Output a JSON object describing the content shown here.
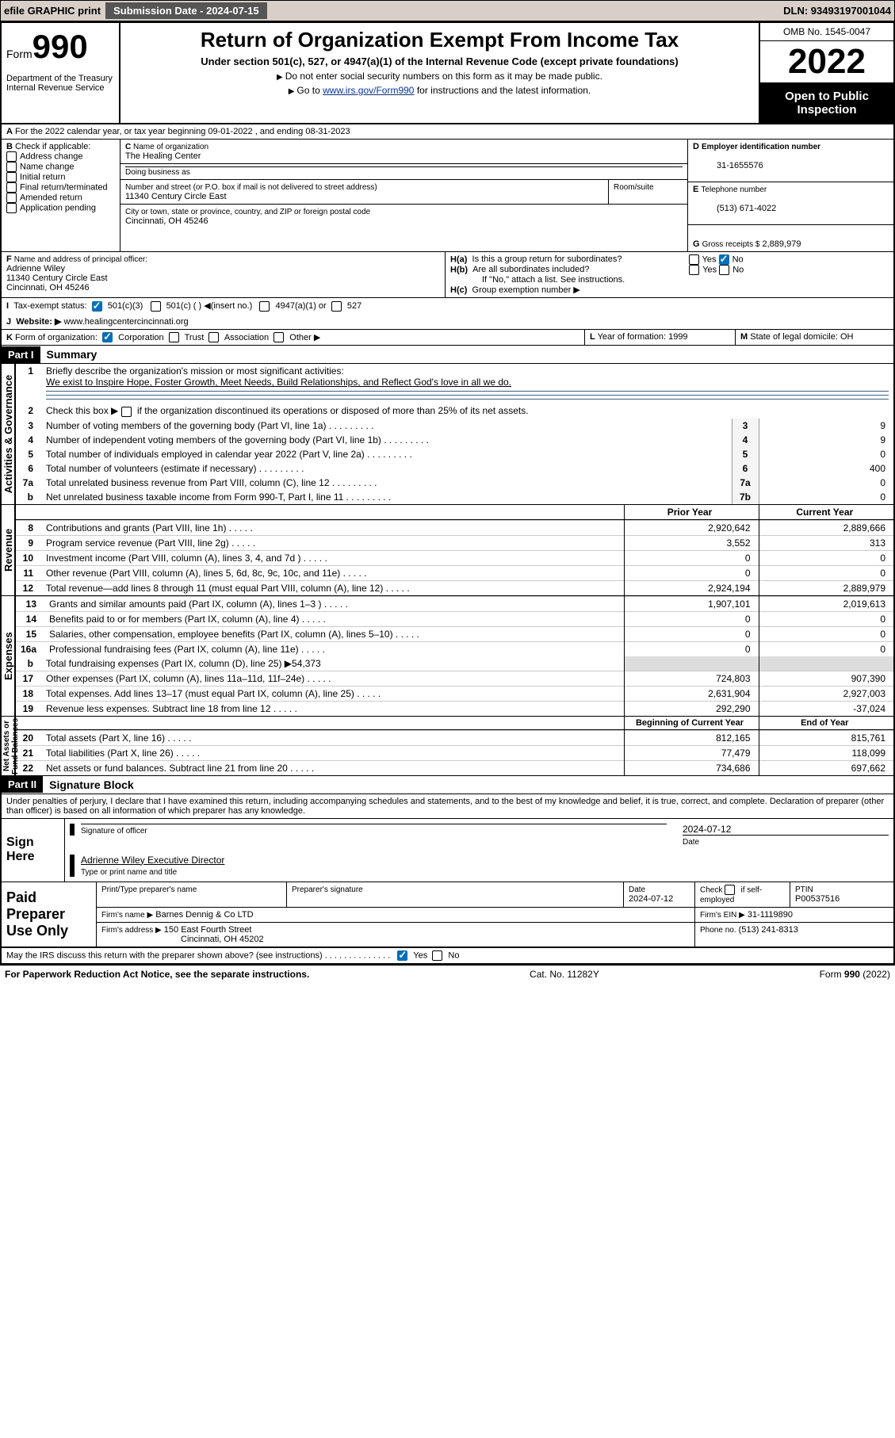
{
  "header": {
    "efile_label": "efile GRAPHIC print",
    "submission_label": "Submission Date - 2024-07-15",
    "dln": "DLN: 93493197001044"
  },
  "title_block": {
    "form": "Form",
    "form_number": "990",
    "dept": "Department of the Treasury",
    "irs": "Internal Revenue Service",
    "main_title": "Return of Organization Exempt From Income Tax",
    "subtitle": "Under section 501(c), 527, or 4947(a)(1) of the Internal Revenue Code (except private foundations)",
    "note1": "Do not enter social security numbers on this form as it may be made public.",
    "note2_a": "Go to ",
    "note2_link": "www.irs.gov/Form990",
    "note2_b": " for instructions and the latest information.",
    "omb": "OMB No. 1545-0047",
    "year": "2022",
    "open": "Open to Public Inspection"
  },
  "lineA": "For the 2022 calendar year, or tax year beginning 09-01-2022    , and ending 08-31-2023",
  "checkB": {
    "label": "Check if applicable:",
    "items": [
      "Address change",
      "Name change",
      "Initial return",
      "Final return/terminated",
      "Amended return",
      "Application pending"
    ]
  },
  "blockC": {
    "label_name": "Name of organization",
    "name": "The Healing Center",
    "dba_label": "Doing business as",
    "addr_label": "Number and street (or P.O. box if mail is not delivered to street address)",
    "room_label": "Room/suite",
    "addr": "11340 Century Circle East",
    "city_label": "City or town, state or province, country, and ZIP or foreign postal code",
    "city": "Cincinnati, OH  45246"
  },
  "blockD": {
    "label": "Employer identification number",
    "value": "31-1655576"
  },
  "blockE": {
    "label": "Telephone number",
    "value": "(513) 671-4022"
  },
  "blockG": {
    "label": "Gross receipts $",
    "value": "2,889,979"
  },
  "blockF": {
    "label": "Name and address of principal officer:",
    "name": "Adrienne Wiley",
    "addr1": "11340 Century Circle East",
    "addr2": "Cincinnati, OH  45246"
  },
  "blockH": {
    "a": "Is this a group return for subordinates?",
    "b": "Are all subordinates included?",
    "b_note": "If \"No,\" attach a list. See instructions.",
    "c": "Group exemption number ▶"
  },
  "blockI": {
    "label": "Tax-exempt status:",
    "c3": "501(c)(3)",
    "c": "501(c) (  ) ◀(insert no.)",
    "a1": "4947(a)(1) or",
    "s527": "527"
  },
  "blockJ": {
    "label": "Website: ▶",
    "value": "www.healingcentercincinnati.org"
  },
  "blockK": {
    "label": "Form of organization:",
    "corp": "Corporation",
    "trust": "Trust",
    "assoc": "Association",
    "other": "Other ▶"
  },
  "blockL": {
    "label": "Year of formation:",
    "value": "1999"
  },
  "blockM": {
    "label": "State of legal domicile:",
    "value": "OH"
  },
  "part1": {
    "header": "Part I",
    "title": "Summary",
    "vtab_gov": "Activities & Governance",
    "vtab_rev": "Revenue",
    "vtab_exp": "Expenses",
    "vtab_net": "Net Assets or Fund Balances",
    "l1": "Briefly describe the organization's mission or most significant activities:",
    "l1_text": "We exist to Inspire Hope, Foster Growth, Meet Needs, Build Relationships, and Reflect God's love in all we do.",
    "l2": "Check this box ▶",
    "l2b": "if the organization discontinued its operations or disposed of more than 25% of its net assets.",
    "rows_gov": [
      {
        "n": "3",
        "t": "Number of voting members of the governing body (Part VI, line 1a)",
        "ln": "3",
        "v": "9"
      },
      {
        "n": "4",
        "t": "Number of independent voting members of the governing body (Part VI, line 1b)",
        "ln": "4",
        "v": "9"
      },
      {
        "n": "5",
        "t": "Total number of individuals employed in calendar year 2022 (Part V, line 2a)",
        "ln": "5",
        "v": "0"
      },
      {
        "n": "6",
        "t": "Total number of volunteers (estimate if necessary)",
        "ln": "6",
        "v": "400"
      },
      {
        "n": "7a",
        "t": "Total unrelated business revenue from Part VIII, column (C), line 12",
        "ln": "7a",
        "v": "0"
      },
      {
        "n": "b",
        "t": "Net unrelated business taxable income from Form 990-T, Part I, line 11",
        "ln": "7b",
        "v": "0"
      }
    ],
    "col_prior": "Prior Year",
    "col_current": "Current Year",
    "rows_rev": [
      {
        "n": "8",
        "t": "Contributions and grants (Part VIII, line 1h)",
        "p": "2,920,642",
        "c": "2,889,666"
      },
      {
        "n": "9",
        "t": "Program service revenue (Part VIII, line 2g)",
        "p": "3,552",
        "c": "313"
      },
      {
        "n": "10",
        "t": "Investment income (Part VIII, column (A), lines 3, 4, and 7d )",
        "p": "0",
        "c": "0"
      },
      {
        "n": "11",
        "t": "Other revenue (Part VIII, column (A), lines 5, 6d, 8c, 9c, 10c, and 11e)",
        "p": "0",
        "c": "0"
      },
      {
        "n": "12",
        "t": "Total revenue—add lines 8 through 11 (must equal Part VIII, column (A), line 12)",
        "p": "2,924,194",
        "c": "2,889,979"
      }
    ],
    "rows_exp": [
      {
        "n": "13",
        "t": "Grants and similar amounts paid (Part IX, column (A), lines 1–3 )",
        "p": "1,907,101",
        "c": "2,019,613"
      },
      {
        "n": "14",
        "t": "Benefits paid to or for members (Part IX, column (A), line 4)",
        "p": "0",
        "c": "0"
      },
      {
        "n": "15",
        "t": "Salaries, other compensation, employee benefits (Part IX, column (A), lines 5–10)",
        "p": "0",
        "c": "0"
      },
      {
        "n": "16a",
        "t": "Professional fundraising fees (Part IX, column (A), line 11e)",
        "p": "0",
        "c": "0"
      }
    ],
    "l16b_a": "Total fundraising expenses (Part IX, column (D), line 25) ▶",
    "l16b_v": "54,373",
    "rows_exp2": [
      {
        "n": "17",
        "t": "Other expenses (Part IX, column (A), lines 11a–11d, 11f–24e)",
        "p": "724,803",
        "c": "907,390"
      },
      {
        "n": "18",
        "t": "Total expenses. Add lines 13–17 (must equal Part IX, column (A), line 25)",
        "p": "2,631,904",
        "c": "2,927,003"
      },
      {
        "n": "19",
        "t": "Revenue less expenses. Subtract line 18 from line 12",
        "p": "292,290",
        "c": "-37,024"
      }
    ],
    "col_beg": "Beginning of Current Year",
    "col_end": "End of Year",
    "rows_net": [
      {
        "n": "20",
        "t": "Total assets (Part X, line 16)",
        "p": "812,165",
        "c": "815,761"
      },
      {
        "n": "21",
        "t": "Total liabilities (Part X, line 26)",
        "p": "77,479",
        "c": "118,099"
      },
      {
        "n": "22",
        "t": "Net assets or fund balances. Subtract line 21 from line 20",
        "p": "734,686",
        "c": "697,662"
      }
    ]
  },
  "part2": {
    "header": "Part II",
    "title": "Signature Block",
    "decl": "Under penalties of perjury, I declare that I have examined this return, including accompanying schedules and statements, and to the best of my knowledge and belief, it is true, correct, and complete. Declaration of preparer (other than officer) is based on all information of which preparer has any knowledge.",
    "sign_here": "Sign Here",
    "sig_officer": "Signature of officer",
    "sig_date": "Date",
    "sig_date_v": "2024-07-12",
    "officer_name": "Adrienne Wiley  Executive Director",
    "type_name": "Type or print name and title",
    "paid": "Paid Preparer Use Only",
    "prep_name_label": "Print/Type preparer's name",
    "prep_sig_label": "Preparer's signature",
    "prep_date_label": "Date",
    "prep_date": "2024-07-12",
    "check_self": "Check",
    "check_self2": "if self-employed",
    "ptin_label": "PTIN",
    "ptin": "P00537516",
    "firm_name_label": "Firm's name    ▶",
    "firm_name": "Barnes Dennig & Co LTD",
    "firm_ein_label": "Firm's EIN ▶",
    "firm_ein": "31-1119890",
    "firm_addr_label": "Firm's address ▶",
    "firm_addr1": "150 East Fourth Street",
    "firm_addr2": "Cincinnati, OH  45202",
    "phone_label": "Phone no.",
    "phone": "(513) 241-8313",
    "discuss": "May the IRS discuss this return with the preparer shown above? (see instructions)"
  },
  "footer": {
    "left": "For Paperwork Reduction Act Notice, see the separate instructions.",
    "mid": "Cat. No. 11282Y",
    "right_a": "Form ",
    "right_b": "990",
    "right_c": " (2022)"
  },
  "yes": "Yes",
  "no": "No",
  "letters": {
    "A": "A",
    "B": "B",
    "C": "C",
    "D": "D",
    "E": "E",
    "F": "F",
    "G": "G",
    "H_a": "H(a)",
    "H_b": "H(b)",
    "H_c": "H(c)",
    "I": "I",
    "J": "J",
    "K": "K",
    "L": "L",
    "M": "M"
  }
}
